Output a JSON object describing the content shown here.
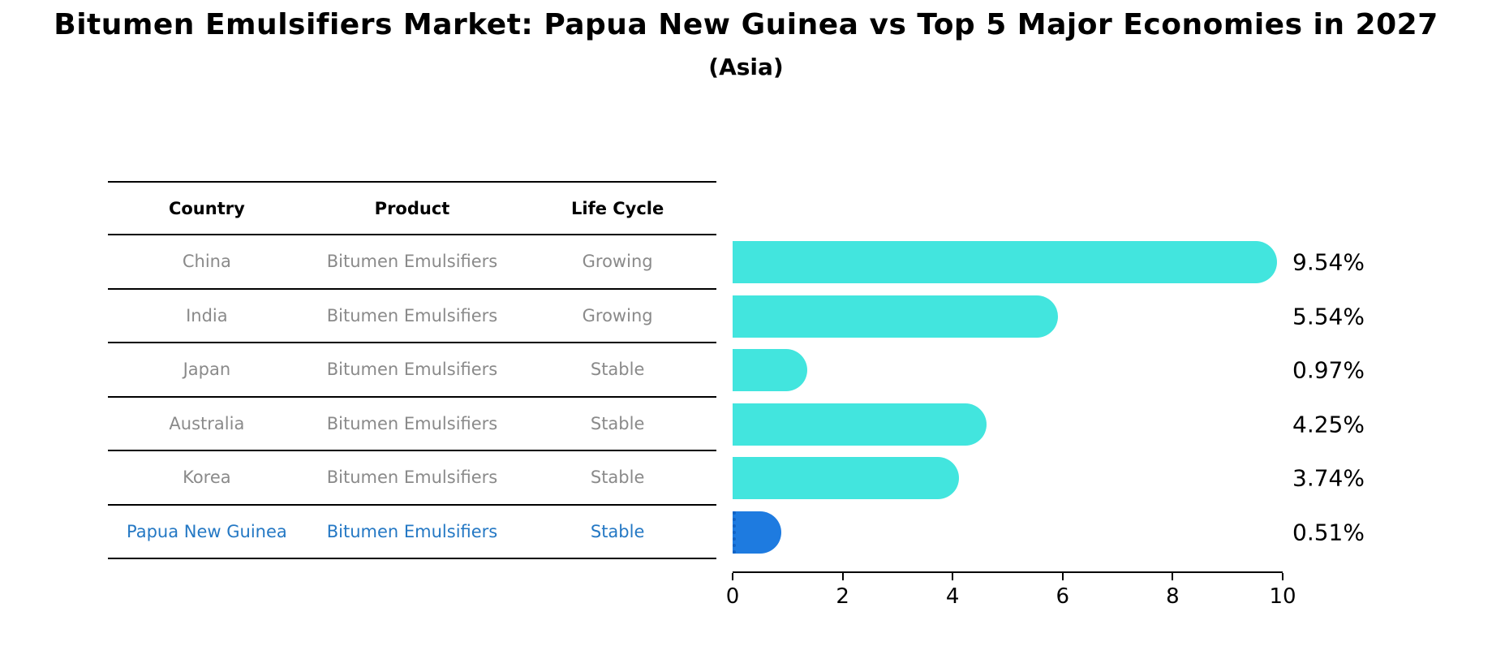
{
  "title": "Bitumen Emulsifiers Market: Papua New Guinea vs Top 5 Major Economies in 2027",
  "subtitle": "(Asia)",
  "table": {
    "headers": [
      "Country",
      "Product",
      "Life Cycle"
    ],
    "rows": [
      {
        "country": "China",
        "product": "Bitumen Emulsifiers",
        "life_cycle": "Growing"
      },
      {
        "country": "India",
        "product": "Bitumen Emulsifiers",
        "life_cycle": "Growing"
      },
      {
        "country": "Japan",
        "product": "Bitumen Emulsifiers",
        "life_cycle": "Stable"
      },
      {
        "country": "Australia",
        "product": "Bitumen Emulsifiers",
        "life_cycle": "Stable"
      },
      {
        "country": "Korea",
        "product": "Bitumen Emulsifiers",
        "life_cycle": "Stable"
      },
      {
        "country": "Papua New Guinea",
        "product": "Bitumen Emulsifiers",
        "life_cycle": "Stable"
      }
    ]
  },
  "chart_data": {
    "type": "bar",
    "orientation": "horizontal",
    "title": "Bitumen Emulsifiers Market: Papua New Guinea vs Top 5 Major Economies in 2027 (Asia)",
    "categories": [
      "China",
      "India",
      "Japan",
      "Australia",
      "Korea",
      "Papua New Guinea"
    ],
    "values": [
      9.54,
      5.54,
      0.97,
      4.25,
      3.74,
      0.51
    ],
    "labels": [
      "9.54%",
      "5.54%",
      "0.97%",
      "4.25%",
      "3.74%",
      "0.51%"
    ],
    "xlabel": "",
    "ylabel": "",
    "xlim": [
      0,
      10
    ],
    "x_ticks": [
      "0",
      "2",
      "4",
      "6",
      "8",
      "10"
    ],
    "grid": false,
    "legend": false,
    "bar_color": "#42E5DE",
    "highlight_color": "#1E7BE0",
    "highlight_index": 5
  },
  "colors": {
    "header_text": "#000000",
    "row_text": "#8a8a8a",
    "highlight_text": "#2478C4",
    "value_label": "#000000",
    "axis": "#000000",
    "background": "#ffffff"
  }
}
